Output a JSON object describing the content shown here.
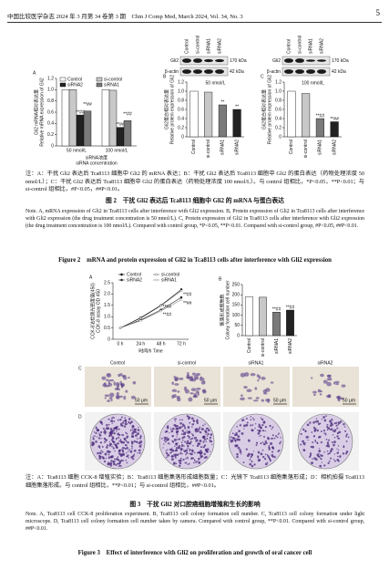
{
  "header": {
    "journal": "中国比较医学杂志 2024 年 3 月第 34 卷第 3 期　Chin J Comp Med, March 2024, Vol. 34, No. 3",
    "page": "5"
  },
  "figure2": {
    "blots": [
      {
        "lanes": [
          "Control",
          "si-control",
          "siRNA1",
          "siRNA2"
        ],
        "bands": [
          {
            "name": "Gli2",
            "size": "170 kDa"
          },
          {
            "name": "β-actin",
            "size": "42 kDa"
          }
        ]
      },
      {
        "lanes": [
          "Control",
          "si-control",
          "siRNA1",
          "siRNA2"
        ],
        "bands": [
          {
            "name": "Gli2",
            "size": "170 kDa"
          },
          {
            "name": "β-actin",
            "size": "42 kDa"
          }
        ]
      }
    ],
    "charts": [
      {
        "type": "bar",
        "panel": "A",
        "ylabel_cn": "Gli2 mRNA相对表达量",
        "ylabel_en": "Relative mRNA expression of Gli2",
        "xlabel_cn": "siRNA浓度",
        "xlabel_en": "siRNA concentration",
        "categories": [
          "50 nmol/L",
          "100 nmol/L"
        ],
        "series": [
          {
            "name": "Control",
            "color": "#ffffff",
            "values": [
              1.0,
              1.0
            ],
            "sig_labels": [
              null,
              null
            ]
          },
          {
            "name": "si-control",
            "color": "#c8c8c8",
            "values": [
              1.0,
              0.99
            ],
            "sig_labels": [
              null,
              null
            ]
          },
          {
            "name": "siRNA2",
            "color": "#222222",
            "values": [
              0.55,
              0.33
            ],
            "sig_labels": [
              "**##",
              "**##"
            ]
          },
          {
            "name": "siRNA1",
            "color": "#7a7a7a",
            "values": [
              0.62,
              0.45
            ],
            "sig_labels": [
              "**##",
              "**##"
            ]
          }
        ],
        "ylim": [
          0,
          1.2
        ],
        "yticks": [
          0,
          0.2,
          0.4,
          0.6,
          0.8,
          {
            "value": 1,
            "label": "1.0"
          },
          1.2
        ]
      },
      {
        "type": "bar",
        "panel": "B",
        "title": "50 nmol/L",
        "ylabel_cn": "Gli2蛋白相对表达量",
        "ylabel_en": "Relative protein expression of Gli2",
        "categories": [
          "Control",
          "si-control",
          "siRNA1",
          "siRNA2"
        ],
        "values": [
          1.0,
          0.98,
          0.7,
          0.6
        ],
        "colors": [
          "#ffffff",
          "#c8c8c8",
          "#7a7a7a",
          "#222222"
        ],
        "sig_labels": [
          null,
          null,
          "**",
          "**"
        ],
        "ylim": [
          0,
          1.2
        ],
        "yticks": [
          0,
          0.2,
          0.4,
          0.6,
          0.8,
          {
            "value": 1,
            "label": "1.0"
          },
          1.2
        ]
      },
      {
        "type": "bar",
        "panel": "C",
        "title": "100 nmol/L",
        "ylabel_cn": "Gli2蛋白相对表达量",
        "ylabel_en": "Relative protein expression of Gli2",
        "categories": [
          "Control",
          "si-control",
          "siRNA1",
          "siRNA2"
        ],
        "values": [
          1.0,
          0.95,
          0.4,
          0.33
        ],
        "colors": [
          "#ffffff",
          "#c8c8c8",
          "#7a7a7a",
          "#222222"
        ],
        "sig_labels": [
          null,
          null,
          "**##",
          "**##"
        ],
        "ylim": [
          0,
          1.2
        ],
        "yticks": [
          0,
          0.2,
          0.4,
          0.6,
          0.8,
          {
            "value": 1,
            "label": "1.0"
          },
          1.2
        ]
      }
    ],
    "caption_cn": "注：A：干扰 Gli2 表达后 Tca8113 细胞中 Gli2 的 mRNA 表达；B：干扰 Gli2 表达后 Tca8113 细胞中 Gli2 的蛋白表达（药物处理浓度 50 nmol/L）；C：干扰 Gli2 表达后 Tca8113 细胞中 Gli2 的蛋白表达（药物处理浓度 100 nmol/L）。与 control 组相比，*P<0.05，**P<0.01；与 si-control 组相比，#P<0.05，##P<0.01。",
    "title_cn": "图 2　干扰 Gli2 表达后 Tca8113 细胞中 Gli2 的 mRNA 与蛋白表达",
    "note_en": "Note. A, mRNA expression of Gli2 in Tca8113 cells after interference with Gli2 expression. B, Protein expression of Gli2 in Tca8113 cells after interference with Gli2 expression (the drug treatment concentration is 50 nmol/L). C, Protein expression of Gli2 in Tca8113 cells after interference with Gli2 expression (the drug treatment concentration is 100 nmol/L). Compared with control group, *P<0.05, **P<0.01. Compared with si-control group, #P<0.05, ##P<0.01.",
    "title_en": "Figure 2　mRNA and protein expression of Gli2 in Tca8113 cells after interference with Gli2 expression"
  },
  "figure3": {
    "charts": [
      {
        "type": "line",
        "panel": "A",
        "ylabel_cn": "CCK-8法检测光密度值(450)",
        "ylabel_en": "CCK-8 assay OD 450",
        "xlabel": "时间/h Time",
        "categories": [
          "0 h",
          "24 h",
          "48 h",
          "72 h"
        ],
        "series": [
          {
            "name": "Control",
            "color": "#000000",
            "values": [
              0.5,
              0.95,
              1.5,
              2.2
            ],
            "sig_labels": [
              null,
              null,
              null,
              null
            ]
          },
          {
            "name": "si-control",
            "color": "#555555",
            "values": [
              0.5,
              0.93,
              1.48,
              2.15
            ],
            "sig_labels": [
              null,
              null,
              null,
              null
            ]
          },
          {
            "name": "siRNA2",
            "color": "#222222",
            "values": [
              0.5,
              0.85,
              1.3,
              1.85
            ],
            "sig_labels": [
              null,
              null,
              "**##",
              "**##"
            ]
          },
          {
            "name": "siRNA1",
            "color": "#888888",
            "values": [
              0.5,
              0.82,
              1.25,
              1.75
            ],
            "sig_labels": [
              null,
              null,
              "**##",
              "**##"
            ]
          }
        ],
        "ylim": [
          0,
          2.5
        ],
        "yticks": [
          0,
          0.5,
          {
            "value": 1,
            "label": "1.0"
          },
          1.5,
          {
            "value": 2,
            "label": "2.0"
          },
          2.5
        ]
      },
      {
        "type": "bar",
        "panel": "B",
        "ylabel_cn": "集落形成细胞数",
        "ylabel_en": "Colony formation cell number",
        "categories": [
          "Control",
          "si-control",
          "siRNA1",
          "siRNA2"
        ],
        "values": [
          190,
          188,
          115,
          125
        ],
        "colors": [
          "#ffffff",
          "#c8c8c8",
          "#7a7a7a",
          "#222222"
        ],
        "sig_labels": [
          null,
          null,
          "**##",
          "**##"
        ],
        "ylim": [
          0,
          250
        ],
        "yticks": [
          0,
          50,
          100,
          150,
          200,
          250
        ]
      }
    ],
    "images": {
      "panel_c": "C",
      "panel_d": "D",
      "labels": [
        "Control",
        "si-control",
        "siRNA1",
        "siRNA2"
      ],
      "scale": "50 μm"
    },
    "caption_cn": "注：A：Tca8113 细胞 CCK-8 增殖实验；B：Tca8113 细胞集落形成细胞数量；C：光镜下 Tca8113 细胞集落形成；D：相机拍摄 Tca8113 细胞集落形成。与 control 组相比，**P<0.01；与 si-control 组相比，##P<0.01。",
    "title_cn": "图 3　干扰 Gli2 对口腔癌细胞增殖和生长的影响",
    "note_en": "Note. A, Tca8113 cell CCK-8 proliferation experiment. B, Tca8113 cell colony formation cell number. C, Tca8113 cell colony formation under light microscope. D, Tca8113 cell colony formation cell number taken by camera. Compared with control group, **P<0.01. Compared with si-control group, ##P<0.01.",
    "title_en": "Figure 3　Effect of interference with Gli2 on proliferation and growth of oral cancer cell"
  }
}
